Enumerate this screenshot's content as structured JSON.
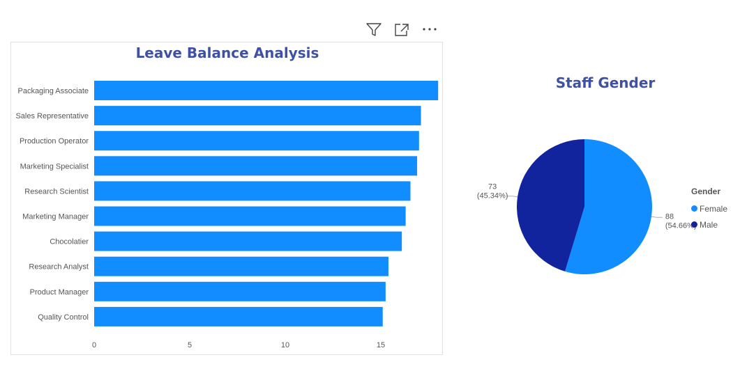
{
  "colors": {
    "bar": "#118dff",
    "female": "#118dff",
    "male": "#12239e",
    "title": "#3f51a5"
  },
  "toolbar": {
    "icons": [
      "filter-icon",
      "focus-mode-icon",
      "more-options-icon"
    ]
  },
  "bar_chart": {
    "title": "Leave Balance Analysis"
  },
  "pie_chart": {
    "title": "Staff Gender",
    "legend_title": "Gender",
    "legend": [
      "Female",
      "Male"
    ],
    "labels": {
      "male_value": "73",
      "male_pct": "(45.34%)",
      "female_value": "88",
      "female_pct": "(54.66%)"
    }
  },
  "chart_data": [
    {
      "type": "bar",
      "orientation": "horizontal",
      "title": "Leave Balance Analysis",
      "categories": [
        "Packaging Associate",
        "Sales Representative",
        "Production Operator",
        "Marketing Specialist",
        "Research Scientist",
        "Marketing Manager",
        "Chocolatier",
        "Research Analyst",
        "Product Manager",
        "Quality Control"
      ],
      "values": [
        18.0,
        17.1,
        17.0,
        16.9,
        16.55,
        16.3,
        16.1,
        15.4,
        15.25,
        15.1
      ],
      "x_ticks": [
        "0",
        "5",
        "10",
        "15"
      ],
      "xlim": [
        0,
        18
      ],
      "grid": false
    },
    {
      "type": "pie",
      "title": "Staff Gender",
      "legend_title": "Gender",
      "legend_position": "right",
      "slices": [
        {
          "label": "Female",
          "value": 88,
          "percent": 54.66
        },
        {
          "label": "Male",
          "value": 73,
          "percent": 45.34
        }
      ]
    }
  ]
}
